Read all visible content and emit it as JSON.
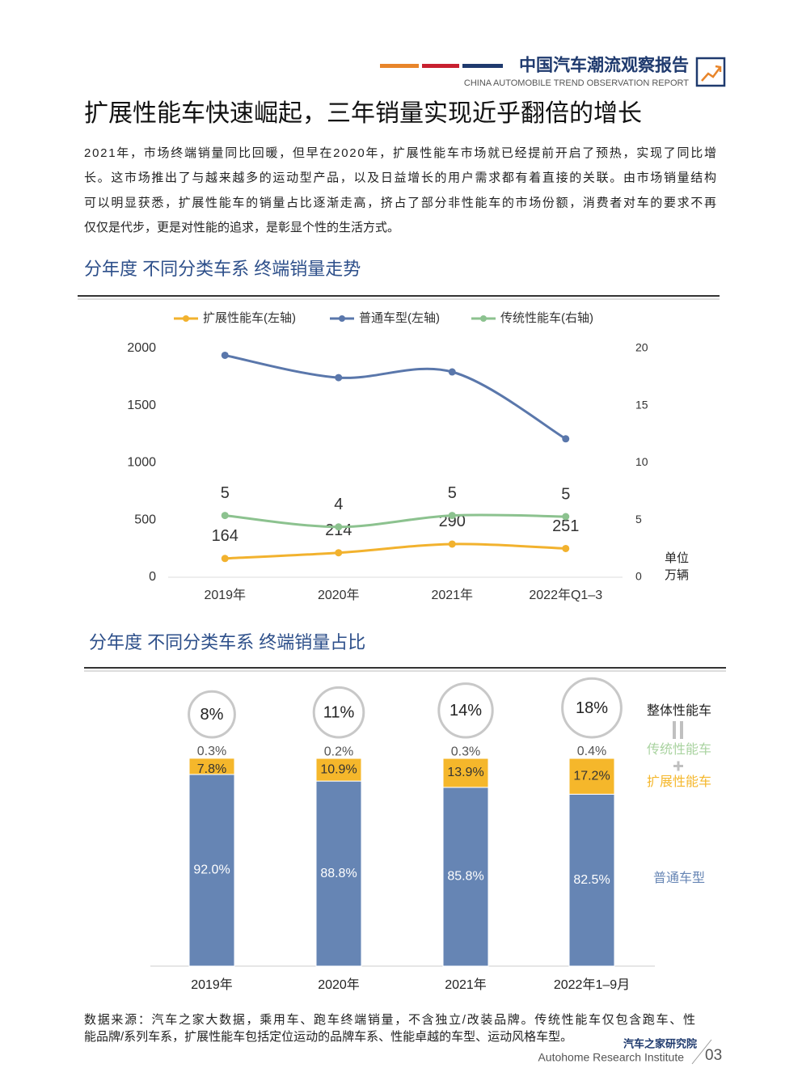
{
  "header": {
    "brand": "中国汽车潮流观察报告",
    "brand_en": "CHINA AUTOMOBILE TREND OBSERVATION REPORT"
  },
  "title": "扩展性能车快速崛起，三年销量实现近乎翻倍的增长",
  "body": [
    "2021年，市场终端销量同比回暖，但早在2020年，扩展性能车市场就已经提前开启了预热，实现了同比增",
    "长。这市场推出了与越来越多的运动型产品，以及日益增长的用户需求都有着直接的关联。由市场销量结构",
    "可以明显获悉，扩展性能车的销量占比逐渐走高，挤占了部分非性能车的市场份额，消费者对车的要求不再",
    "仅仅是代步，更是对性能的追求，是彰显个性的生活方式。"
  ],
  "chart_data": [
    {
      "type": "line",
      "title": "分年度 不同分类车系 终端销量走势",
      "categories": [
        "2019年",
        "2020年",
        "2021年",
        "2022年Q1–3"
      ],
      "series": [
        {
          "name": "扩展性能车(左轴)",
          "color": "#f2b22e",
          "values": [
            164,
            214,
            290,
            251
          ],
          "data_labels": true
        },
        {
          "name": "普通车型(左轴)",
          "color": "#5a77ab",
          "values": [
            1940,
            1745,
            1795,
            1210
          ]
        },
        {
          "name": "传统性能车(右轴)",
          "color": "#8cc28f",
          "axis": "y2",
          "values": [
            5.4,
            4.4,
            5.4,
            5.3
          ],
          "value_labels": [
            "5",
            "4",
            "5",
            "5"
          ],
          "data_labels": true
        }
      ],
      "ylim": [
        0,
        2000
      ],
      "yticks": [
        0,
        500,
        1000,
        1500,
        2000
      ],
      "y2lim": [
        0,
        20
      ],
      "y2ticks": [
        0,
        5,
        10,
        15,
        20
      ],
      "unit": [
        "单位",
        "万辆"
      ],
      "grid": false,
      "legend": "top"
    },
    {
      "type": "stacked-bar",
      "title": "分年度 不同分类车系 终端销量占比",
      "categories": [
        "2019年",
        "2020年",
        "2021年",
        "2022年1–9月"
      ],
      "series": [
        {
          "name": "普通车型",
          "color": "#6685b4",
          "label_color": "#ffffff",
          "values": [
            92.0,
            88.8,
            85.8,
            82.5
          ],
          "value_labels": [
            "92.0%",
            "88.8%",
            "85.8%",
            "82.5%"
          ]
        },
        {
          "name": "扩展性能车",
          "color": "#f5b72b",
          "label_color": "#333333",
          "values": [
            7.8,
            10.9,
            13.9,
            17.2
          ],
          "value_labels": [
            "7.8%",
            "10.9%",
            "13.9%",
            "17.2%"
          ]
        },
        {
          "name": "传统性能车",
          "color": "#a9d3a0",
          "label_color": "#555555",
          "values": [
            0.3,
            0.2,
            0.3,
            0.4
          ],
          "value_labels": [
            "0.3%",
            "0.2%",
            "0.3%",
            "0.4%"
          ]
        }
      ],
      "totals": {
        "name": "整体性能车",
        "values": [
          8,
          11,
          14,
          18
        ],
        "value_labels": [
          "8%",
          "11%",
          "14%",
          "18%"
        ]
      },
      "legend": "right"
    }
  ],
  "note": [
    "数据来源：汽车之家大数据，乘用车、跑车终端销量，不含独立/改装品牌。传统性能车仅包含跑车、性",
    "能品牌/系列车系，扩展性能车包括定位运动的品牌车系、性能卓越的车型、运动风格车型。"
  ],
  "footer": {
    "org": "汽车之家研究院",
    "org_en": "Autohome Research Institute",
    "page": "03"
  }
}
